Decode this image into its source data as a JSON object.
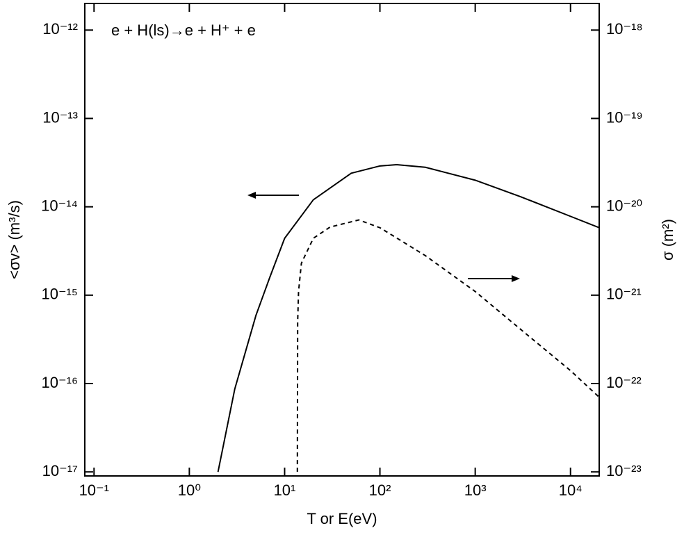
{
  "chart_data": {
    "type": "line",
    "annotation": "e + H(ls)→e + H⁺ + e",
    "xlabel": "T or E(eV)",
    "ylabel": "<σv> (m³/s)",
    "y2label": "σ (m²)",
    "xscale": "log",
    "yscale": "log",
    "y2scale": "log",
    "xlim": [
      0.08,
      20000
    ],
    "ylim": [
      9e-18,
      2e-12
    ],
    "y2lim": [
      9e-24,
      2e-18
    ],
    "xticks": [
      {
        "value": 0.1,
        "label": "10⁻¹"
      },
      {
        "value": 1,
        "label": "10⁰"
      },
      {
        "value": 10,
        "label": "10¹"
      },
      {
        "value": 100,
        "label": "10²"
      },
      {
        "value": 1000,
        "label": "10³"
      },
      {
        "value": 10000,
        "label": "10⁴"
      }
    ],
    "yticks": [
      {
        "value": 1e-17,
        "label": "10⁻¹⁷"
      },
      {
        "value": 1e-16,
        "label": "10⁻¹⁶"
      },
      {
        "value": 1e-15,
        "label": "10⁻¹⁵"
      },
      {
        "value": 1e-14,
        "label": "10⁻¹⁴"
      },
      {
        "value": 1e-13,
        "label": "10⁻¹³"
      },
      {
        "value": 1e-12,
        "label": "10⁻¹²"
      }
    ],
    "y2ticks": [
      {
        "value": 1e-23,
        "label": "10⁻²³"
      },
      {
        "value": 1e-22,
        "label": "10⁻²²"
      },
      {
        "value": 1e-21,
        "label": "10⁻²¹"
      },
      {
        "value": 1e-20,
        "label": "10⁻²⁰"
      },
      {
        "value": 1e-19,
        "label": "10⁻¹⁹"
      },
      {
        "value": 1e-18,
        "label": "10⁻¹⁸"
      }
    ],
    "series": [
      {
        "color": "#000000",
        "line_style": "solid",
        "axis": "y",
        "x": [
          2,
          3,
          5,
          7,
          10,
          20,
          50,
          100,
          150,
          300,
          1000,
          3000,
          10000,
          20000
        ],
        "values": [
          1e-17,
          8.7e-17,
          5.9e-16,
          1.6e-15,
          4.4e-15,
          1.2e-14,
          2.4e-14,
          2.9e-14,
          3e-14,
          2.8e-14,
          2e-14,
          1.3e-14,
          7.8e-15,
          5.8e-15
        ]
      },
      {
        "color": "#000000",
        "line_style": "dashed",
        "axis": "y2",
        "x": [
          13.6,
          13.7,
          14,
          15,
          20,
          30,
          60,
          100,
          300,
          1000,
          3000,
          10000,
          20000
        ],
        "values": [
          1e-23,
          5e-22,
          1.1e-21,
          2.3e-21,
          4.4e-21,
          5.9e-21,
          7.1e-21,
          5.8e-21,
          2.8e-21,
          1.1e-21,
          4.1e-22,
          1.4e-22,
          7e-23
        ]
      }
    ]
  }
}
